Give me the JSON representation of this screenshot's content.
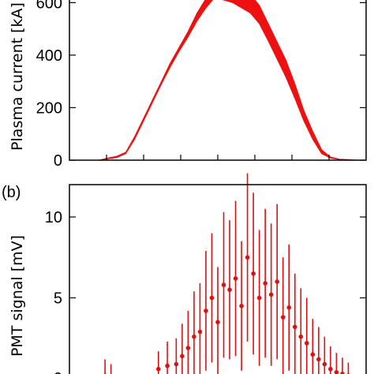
{
  "chart_data": [
    {
      "panel_label": "",
      "type": "area",
      "ylabel": "Plasma current [kA]",
      "ylim": [
        0,
        640
      ],
      "yticks": [
        0,
        200,
        400,
        600
      ],
      "xlim": [
        0,
        1
      ],
      "minor_xticks": [
        0.125,
        0.25,
        0.375,
        0.5,
        0.625,
        0.75,
        0.875
      ],
      "color": "#ee1111",
      "series": [
        {
          "x": [
            0.0,
            0.1,
            0.13,
            0.16,
            0.19,
            0.22,
            0.25,
            0.28,
            0.31,
            0.34,
            0.37,
            0.4,
            0.43,
            0.46,
            0.49,
            0.52,
            0.55,
            0.58,
            0.61,
            0.64,
            0.67,
            0.7,
            0.73,
            0.76,
            0.79,
            0.82,
            0.85,
            0.88,
            0.91,
            0.94,
            0.97,
            1.0
          ],
          "upper": [
            0,
            0,
            8,
            15,
            30,
            90,
            160,
            230,
            300,
            370,
            430,
            490,
            560,
            615,
            650,
            640,
            625,
            640,
            630,
            590,
            520,
            450,
            380,
            290,
            190,
            110,
            40,
            12,
            4,
            2,
            0,
            0
          ],
          "lower": [
            0,
            0,
            5,
            10,
            25,
            80,
            150,
            220,
            290,
            355,
            415,
            470,
            530,
            580,
            620,
            610,
            600,
            580,
            560,
            520,
            455,
            385,
            315,
            235,
            150,
            80,
            25,
            8,
            2,
            0,
            0,
            0
          ]
        }
      ]
    },
    {
      "panel_label": "(b)",
      "type": "scatter",
      "ylabel": "PMT signal [mV]",
      "ylim": [
        0,
        12
      ],
      "yticks": [
        5,
        10
      ],
      "yticklabels": [
        "5",
        "10"
      ],
      "partial_bottom_label": "0",
      "xlim": [
        0,
        1
      ],
      "color": "#dd1111",
      "points": [
        {
          "x": 0.12,
          "y": 0.2,
          "err": 1.0
        },
        {
          "x": 0.14,
          "y": 0.1,
          "err": 0.8
        },
        {
          "x": 0.3,
          "y": 0.6,
          "err": 1.1
        },
        {
          "x": 0.33,
          "y": 0.8,
          "err": 1.5
        },
        {
          "x": 0.36,
          "y": 0.9,
          "err": 1.6
        },
        {
          "x": 0.38,
          "y": 1.4,
          "err": 2.0
        },
        {
          "x": 0.4,
          "y": 1.9,
          "err": 2.3
        },
        {
          "x": 0.42,
          "y": 2.6,
          "err": 2.8
        },
        {
          "x": 0.44,
          "y": 2.9,
          "err": 3.0
        },
        {
          "x": 0.46,
          "y": 4.2,
          "err": 3.7
        },
        {
          "x": 0.48,
          "y": 5.0,
          "err": 4.0
        },
        {
          "x": 0.5,
          "y": 3.5,
          "err": 3.4
        },
        {
          "x": 0.52,
          "y": 5.8,
          "err": 4.5
        },
        {
          "x": 0.54,
          "y": 5.5,
          "err": 4.3
        },
        {
          "x": 0.56,
          "y": 6.2,
          "err": 4.8
        },
        {
          "x": 0.58,
          "y": 4.5,
          "err": 4.0
        },
        {
          "x": 0.6,
          "y": 7.5,
          "err": 5.2
        },
        {
          "x": 0.62,
          "y": 6.5,
          "err": 5.0
        },
        {
          "x": 0.64,
          "y": 5.0,
          "err": 4.2
        },
        {
          "x": 0.66,
          "y": 5.9,
          "err": 4.6
        },
        {
          "x": 0.68,
          "y": 5.2,
          "err": 4.4
        },
        {
          "x": 0.7,
          "y": 6.0,
          "err": 4.8
        },
        {
          "x": 0.72,
          "y": 3.8,
          "err": 3.7
        },
        {
          "x": 0.74,
          "y": 4.4,
          "err": 3.9
        },
        {
          "x": 0.76,
          "y": 3.2,
          "err": 3.3
        },
        {
          "x": 0.78,
          "y": 2.6,
          "err": 3.0
        },
        {
          "x": 0.8,
          "y": 2.2,
          "err": 2.8
        },
        {
          "x": 0.82,
          "y": 1.5,
          "err": 2.2
        },
        {
          "x": 0.84,
          "y": 1.2,
          "err": 2.0
        },
        {
          "x": 0.86,
          "y": 0.9,
          "err": 1.7
        },
        {
          "x": 0.88,
          "y": 0.6,
          "err": 1.4
        },
        {
          "x": 0.9,
          "y": 0.4,
          "err": 1.2
        },
        {
          "x": 0.92,
          "y": 0.3,
          "err": 1.0
        },
        {
          "x": 0.94,
          "y": 0.2,
          "err": 0.8
        }
      ]
    }
  ]
}
